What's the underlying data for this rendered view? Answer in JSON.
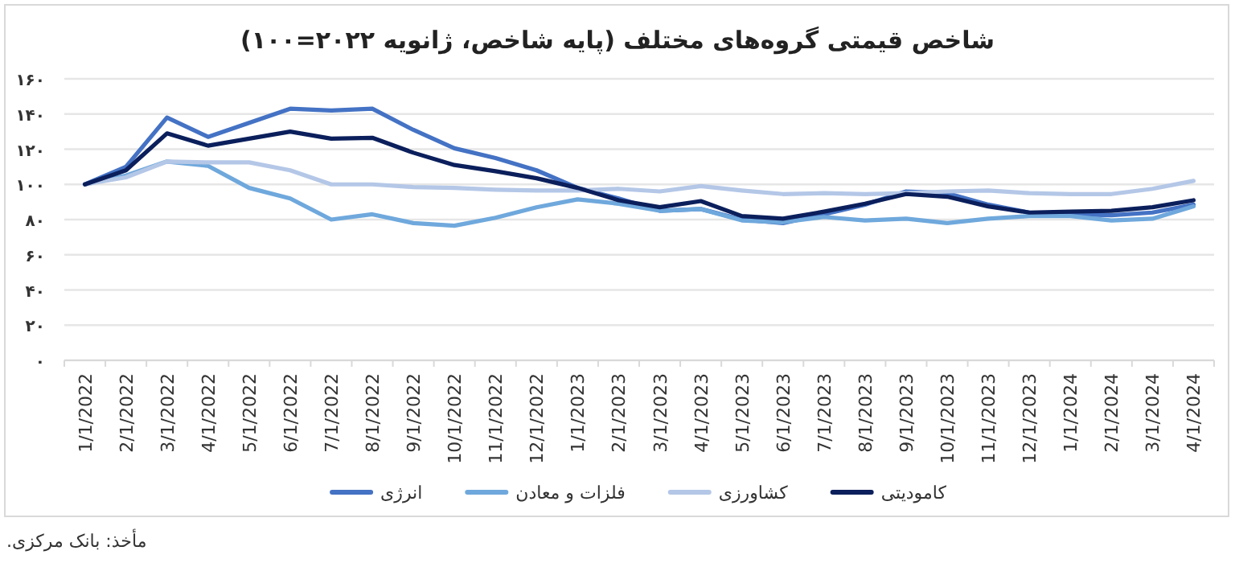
{
  "chart_data": {
    "type": "line",
    "title": "شاخص قیمتی گروه‌های مختلف (پایه شاخص، ژانویه ۲۰۲۲=۱۰۰)",
    "categories": [
      "1/1/2022",
      "2/1/2022",
      "3/1/2022",
      "4/1/2022",
      "5/1/2022",
      "6/1/2022",
      "7/1/2022",
      "8/1/2022",
      "9/1/2022",
      "10/1/2022",
      "11/1/2022",
      "12/1/2022",
      "1/1/2023",
      "2/1/2023",
      "3/1/2023",
      "4/1/2023",
      "5/1/2023",
      "6/1/2023",
      "7/1/2023",
      "8/1/2023",
      "9/1/2023",
      "10/1/2023",
      "11/1/2023",
      "12/1/2023",
      "1/1/2024",
      "2/1/2024",
      "3/1/2024",
      "4/1/2024"
    ],
    "series": [
      {
        "name": "انرژی",
        "color": "#4472c4",
        "values": [
          100,
          110,
          138,
          127,
          135,
          143,
          142,
          143,
          131,
          120.5,
          115,
          108,
          98,
          92,
          85,
          86,
          80,
          78,
          83,
          88.5,
          96,
          95,
          88.5,
          84,
          83,
          82.5,
          84,
          88.5
        ]
      },
      {
        "name": "فلزات و معادن",
        "color": "#6fa8dc",
        "values": [
          100,
          105,
          113,
          110.5,
          98,
          92,
          80,
          83,
          78,
          76.5,
          81,
          87,
          91.5,
          89,
          85,
          86,
          79.5,
          78.5,
          81.5,
          79.5,
          80.5,
          78,
          80.5,
          82,
          82,
          79.5,
          80.5,
          87.5
        ]
      },
      {
        "name": "کشاورزی",
        "color": "#b4c7e7",
        "values": [
          100,
          104,
          113,
          112.5,
          112.5,
          108,
          100,
          100,
          98.5,
          98,
          97,
          96.5,
          96.5,
          97.5,
          96,
          99,
          96.5,
          94.5,
          95,
          94.5,
          95,
          96,
          96.5,
          95,
          94.5,
          94.5,
          97.5,
          102
        ]
      },
      {
        "name": "کامودیتی",
        "color": "#0b1f5c",
        "values": [
          100,
          108,
          129,
          122,
          126,
          130,
          126,
          126.5,
          118,
          111,
          107.5,
          103.5,
          98,
          91,
          87,
          90.5,
          82,
          80.5,
          84.5,
          89,
          94.5,
          93,
          87.5,
          84,
          84.5,
          85,
          87,
          91
        ]
      }
    ],
    "ylim": [
      0,
      160
    ],
    "yticks": [
      {
        "value": 0,
        "label": "۰"
      },
      {
        "value": 20,
        "label": "۲۰"
      },
      {
        "value": 40,
        "label": "۴۰"
      },
      {
        "value": 60,
        "label": "۶۰"
      },
      {
        "value": 80,
        "label": "۸۰"
      },
      {
        "value": 100,
        "label": "۱۰۰"
      },
      {
        "value": 120,
        "label": "۱۲۰"
      },
      {
        "value": 140,
        "label": "۱۴۰"
      },
      {
        "value": 160,
        "label": "۱۶۰"
      }
    ],
    "grid": "y",
    "legend": "bottom",
    "line_style": "solid",
    "annotations": [
      "مأخذ: بانک مرکزی."
    ]
  }
}
